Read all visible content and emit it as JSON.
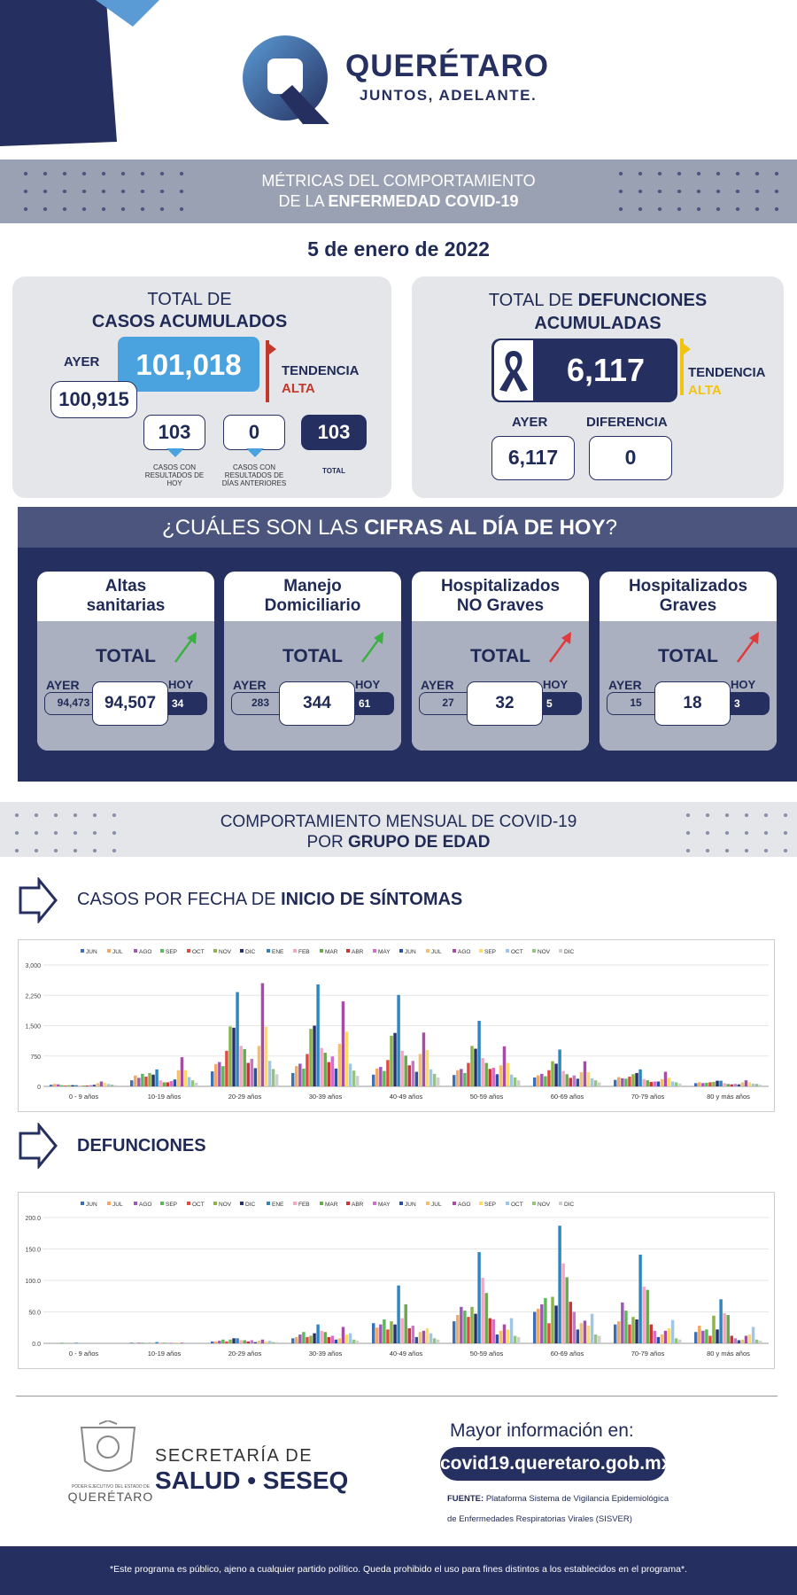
{
  "header": {
    "brand": "QUERÉTARO",
    "slogan": "JUNTOS, ADELANTE."
  },
  "banner1": {
    "line1": "MÉTRICAS DEL COMPORTAMIENTO",
    "line2a": "DE LA ",
    "line2b": "ENFERMEDAD COVID-19"
  },
  "date": "5 de enero de 2022",
  "casos": {
    "title1": "TOTAL DE",
    "title2": "CASOS ACUMULADOS",
    "ayer_label": "AYER",
    "ayer_value": "100,915",
    "total": "101,018",
    "tendencia_label": "TENDENCIA",
    "tendencia_value": "ALTA",
    "today": "103",
    "today_caption": "CASOS CON RESULTADOS DE HOY",
    "prev": "0",
    "prev_caption": "CASOS CON RESULTADOS DE DÍAS ANTERIORES",
    "sum": "103",
    "sum_caption": "TOTAL"
  },
  "defunciones": {
    "title1a": "TOTAL DE ",
    "title1b": "DEFUNCIONES",
    "title2": "ACUMULADAS",
    "total": "6,117",
    "tendencia_label": "TENDENCIA",
    "tendencia_value": "ALTA",
    "ayer_label": "AYER",
    "ayer_value": "6,117",
    "dif_label": "DIFERENCIA",
    "dif_value": "0"
  },
  "hoy": {
    "title_a": "¿CUÁLES SON LAS ",
    "title_b": "CIFRAS AL DÍA DE HOY",
    "title_c": "?",
    "cards": [
      {
        "title1": "Altas",
        "title2": "sanitarias",
        "total_label": "TOTAL",
        "ayer_label": "AYER",
        "hoy_label": "HOY",
        "ayer": "94,473",
        "total": "94,507",
        "hoy": "34",
        "arrow": "green"
      },
      {
        "title1": "Manejo",
        "title2": "Domiciliario",
        "total_label": "TOTAL",
        "ayer_label": "AYER",
        "hoy_label": "HOY",
        "ayer": "283",
        "total": "344",
        "hoy": "61",
        "arrow": "green"
      },
      {
        "title1": "Hospitalizados",
        "title2": "NO Graves",
        "total_label": "TOTAL",
        "ayer_label": "AYER",
        "hoy_label": "HOY",
        "ayer": "27",
        "total": "32",
        "hoy": "5",
        "arrow": "red"
      },
      {
        "title1": "Hospitalizados",
        "title2": "Graves",
        "total_label": "TOTAL",
        "ayer_label": "AYER",
        "hoy_label": "HOY",
        "ayer": "15",
        "total": "18",
        "hoy": "3",
        "arrow": "red"
      }
    ]
  },
  "banner2": {
    "line1": "COMPORTAMIENTO MENSUAL DE COVID-19",
    "line2a": "POR ",
    "line2b": "GRUPO DE EDAD"
  },
  "section1": {
    "title_a": "CASOS POR FECHA DE ",
    "title_b": "INICIO  DE SÍNTOMAS"
  },
  "section2": {
    "title": "DEFUNCIONES"
  },
  "chart_data": [
    {
      "type": "bar",
      "title": "CASOS POR FECHA DE INICIO DE SÍNTOMAS",
      "categories": [
        "0 - 9 años",
        "10-19 años",
        "20-29 años",
        "30-39 años",
        "40-49 años",
        "50-59 años",
        "60-69 años",
        "70-79 años",
        "80 y más años"
      ],
      "y_ticks": [
        "0",
        "750",
        "1,500",
        "2,250",
        "3,000"
      ],
      "ylim": [
        0,
        3000
      ],
      "series": [
        {
          "name": "JUN",
          "color": "#3d6fb5",
          "values": [
            40,
            150,
            370,
            330,
            290,
            280,
            220,
            160,
            80
          ]
        },
        {
          "name": "JUL",
          "color": "#f3a763",
          "values": [
            60,
            270,
            550,
            500,
            440,
            400,
            270,
            230,
            100
          ]
        },
        {
          "name": "AGO",
          "color": "#9b59b6",
          "values": [
            50,
            210,
            600,
            560,
            480,
            430,
            310,
            200,
            80
          ]
        },
        {
          "name": "SEP",
          "color": "#5cb85c",
          "values": [
            30,
            310,
            500,
            440,
            380,
            330,
            250,
            190,
            90
          ]
        },
        {
          "name": "OCT",
          "color": "#e04a3f",
          "values": [
            20,
            240,
            880,
            800,
            650,
            580,
            400,
            240,
            100
          ]
        },
        {
          "name": "NOV",
          "color": "#8ab34a",
          "values": [
            30,
            330,
            1480,
            1420,
            1250,
            1000,
            620,
            300,
            110
          ]
        },
        {
          "name": "DIC",
          "color": "#27306a",
          "values": [
            30,
            290,
            1450,
            1500,
            1320,
            930,
            560,
            330,
            140
          ]
        },
        {
          "name": "ENE",
          "color": "#2e86c1",
          "values": [
            30,
            420,
            2330,
            2520,
            2260,
            1620,
            910,
            420,
            140
          ]
        },
        {
          "name": "FEB",
          "color": "#f5a6c0",
          "values": [
            20,
            150,
            1000,
            950,
            880,
            700,
            380,
            180,
            80
          ]
        },
        {
          "name": "MAR",
          "color": "#6aa84f",
          "values": [
            20,
            100,
            920,
            830,
            760,
            580,
            300,
            150,
            60
          ]
        },
        {
          "name": "ABR",
          "color": "#cc3333",
          "values": [
            20,
            100,
            580,
            600,
            520,
            430,
            210,
            110,
            50
          ]
        },
        {
          "name": "MAY",
          "color": "#d070c8",
          "values": [
            30,
            130,
            680,
            740,
            630,
            460,
            270,
            120,
            60
          ]
        },
        {
          "name": "JUN",
          "color": "#2a4fa0",
          "values": [
            40,
            170,
            450,
            440,
            360,
            300,
            190,
            120,
            50
          ]
        },
        {
          "name": "JUL",
          "color": "#f0c070",
          "values": [
            80,
            400,
            1000,
            1050,
            800,
            520,
            350,
            180,
            100
          ]
        },
        {
          "name": "AGO",
          "color": "#a64ca6",
          "values": [
            120,
            720,
            2550,
            2100,
            1330,
            990,
            620,
            360,
            150
          ]
        },
        {
          "name": "SEP",
          "color": "#ffd966",
          "values": [
            90,
            400,
            1470,
            1350,
            900,
            580,
            350,
            210,
            100
          ]
        },
        {
          "name": "OCT",
          "color": "#9fc5e8",
          "values": [
            60,
            230,
            630,
            560,
            420,
            290,
            200,
            120,
            70
          ]
        },
        {
          "name": "NOV",
          "color": "#93c47d",
          "values": [
            40,
            150,
            430,
            390,
            310,
            220,
            150,
            100,
            60
          ]
        },
        {
          "name": "DIC",
          "color": "#cfcfcf",
          "values": [
            30,
            90,
            300,
            260,
            220,
            150,
            100,
            70,
            40
          ]
        }
      ]
    },
    {
      "type": "bar",
      "title": "DEFUNCIONES",
      "categories": [
        "0 - 9 años",
        "10-19 años",
        "20-29 años",
        "30-39 años",
        "40-49 años",
        "50-59 años",
        "60-69 años",
        "70-79 años",
        "80 y más años"
      ],
      "y_ticks": [
        "0.0",
        "50.0",
        "100.0",
        "150.0",
        "200.0"
      ],
      "ylim": [
        0,
        200
      ],
      "series": [
        {
          "name": "JUN",
          "color": "#3d6fb5",
          "values": [
            0,
            1,
            3,
            8,
            32,
            35,
            50,
            30,
            18
          ]
        },
        {
          "name": "JUL",
          "color": "#f3a763",
          "values": [
            0,
            0,
            3,
            10,
            25,
            45,
            55,
            35,
            28
          ]
        },
        {
          "name": "AGO",
          "color": "#9b59b6",
          "values": [
            0,
            1,
            4,
            14,
            30,
            58,
            62,
            65,
            20
          ]
        },
        {
          "name": "SEP",
          "color": "#5cb85c",
          "values": [
            1,
            1,
            6,
            18,
            38,
            52,
            72,
            52,
            22
          ]
        },
        {
          "name": "OCT",
          "color": "#e04a3f",
          "values": [
            0,
            0,
            3,
            10,
            22,
            42,
            32,
            30,
            12
          ]
        },
        {
          "name": "NOV",
          "color": "#8ab34a",
          "values": [
            0,
            1,
            6,
            12,
            35,
            58,
            74,
            42,
            44
          ]
        },
        {
          "name": "DIC",
          "color": "#27306a",
          "values": [
            0,
            0,
            8,
            16,
            30,
            47,
            60,
            38,
            22
          ]
        },
        {
          "name": "ENE",
          "color": "#2e86c1",
          "values": [
            1,
            2,
            8,
            30,
            92,
            145,
            187,
            141,
            70
          ]
        },
        {
          "name": "FEB",
          "color": "#f5a6c0",
          "values": [
            0,
            1,
            5,
            20,
            40,
            104,
            127,
            90,
            48
          ]
        },
        {
          "name": "MAR",
          "color": "#6aa84f",
          "values": [
            0,
            1,
            5,
            18,
            62,
            80,
            105,
            85,
            45
          ]
        },
        {
          "name": "ABR",
          "color": "#cc3333",
          "values": [
            0,
            0,
            3,
            10,
            24,
            40,
            66,
            30,
            12
          ]
        },
        {
          "name": "MAY",
          "color": "#d070c8",
          "values": [
            0,
            1,
            5,
            12,
            28,
            38,
            50,
            20,
            8
          ]
        },
        {
          "name": "JUN",
          "color": "#2a4fa0",
          "values": [
            0,
            0,
            2,
            6,
            10,
            14,
            22,
            10,
            5
          ]
        },
        {
          "name": "JUL",
          "color": "#f0c070",
          "values": [
            0,
            1,
            4,
            8,
            18,
            20,
            32,
            14,
            6
          ]
        },
        {
          "name": "AGO",
          "color": "#a64ca6",
          "values": [
            0,
            1,
            6,
            26,
            20,
            30,
            36,
            20,
            12
          ]
        },
        {
          "name": "SEP",
          "color": "#ffd966",
          "values": [
            0,
            0,
            3,
            14,
            24,
            22,
            28,
            24,
            14
          ]
        },
        {
          "name": "OCT",
          "color": "#9fc5e8",
          "values": [
            0,
            1,
            4,
            16,
            16,
            40,
            47,
            37,
            26
          ]
        },
        {
          "name": "NOV",
          "color": "#93c47d",
          "values": [
            0,
            0,
            2,
            6,
            8,
            12,
            14,
            8,
            6
          ]
        },
        {
          "name": "DIC",
          "color": "#cfcfcf",
          "values": [
            0,
            0,
            2,
            4,
            6,
            10,
            12,
            6,
            4
          ]
        }
      ]
    }
  ],
  "footer": {
    "sec1": "SECRETARÍA DE",
    "sec2": "SALUD • SESEQ",
    "shield_caption": "PODER EJECUTIVO DEL ESTADO DE",
    "shield_state": "QUERÉTARO",
    "more_info": "Mayor información en:",
    "url": "covid19.queretaro.gob.mx",
    "fuente_label": "FUENTE:",
    "fuente_text": "Plataforma Sistema  de Vigilancia Epidemiológica",
    "fuente_text2": "de Enfermedades Respiratorias Virales (SISVER)",
    "disclaimer": "*Este programa es público, ajeno a cualquier partido político. Queda prohibido el uso para fines distintos a los establecidos en el programa*."
  }
}
